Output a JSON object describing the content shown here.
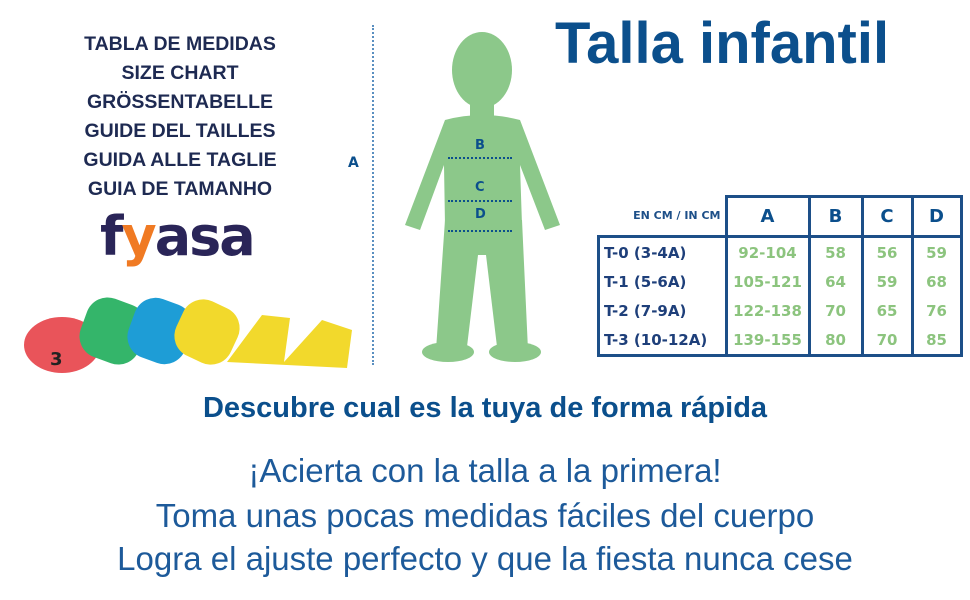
{
  "languages": [
    "TABLA DE MEDIDAS",
    "SIZE CHART",
    "GRÖSSENTABELLE",
    "GUIDE DEL TAILLES",
    "GUIDA ALLE TAGLIE",
    "GUIA DE TAMANHO"
  ],
  "brand": {
    "logo_text": "fyasa",
    "accent": "#f07a23",
    "color": "#2a2558"
  },
  "title": "Talla infantil",
  "figure": {
    "labels": {
      "a": "A",
      "b": "B",
      "c": "C",
      "d": "D"
    },
    "color": "#8cc88a"
  },
  "table": {
    "unit": "EN CM / IN CM",
    "columns": [
      "A",
      "B",
      "C",
      "D"
    ],
    "rows": [
      {
        "size": "T-0 (3-4A)",
        "values": [
          "92-104",
          "58",
          "56",
          "59"
        ]
      },
      {
        "size": "T-1 (5-6A)",
        "values": [
          "105-121",
          "64",
          "59",
          "68"
        ]
      },
      {
        "size": "T-2 (7-9A)",
        "values": [
          "122-138",
          "70",
          "65",
          "76"
        ]
      },
      {
        "size": "T-3 (10-12A)",
        "values": [
          "139-155",
          "80",
          "70",
          "85"
        ]
      }
    ]
  },
  "subtitle": "Descubre cual es la tuya de forma rápida",
  "taglines": [
    "¡Acierta con la talla a la primera!",
    "Toma unas pocas medidas fáciles del cuerpo",
    "Logra el ajuste perfecto y que la fiesta nunca cese"
  ]
}
